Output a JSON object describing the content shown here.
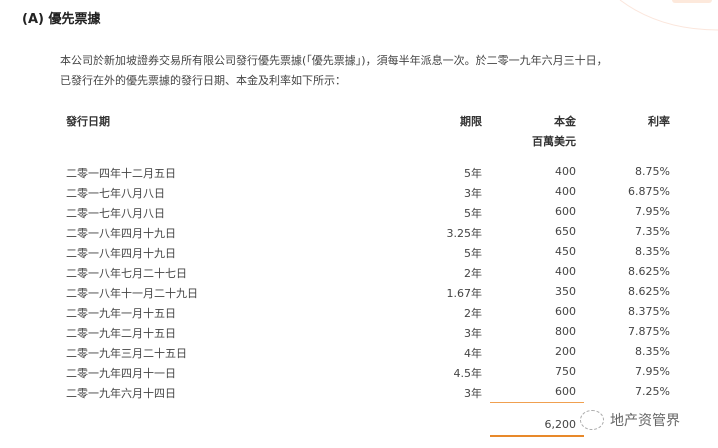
{
  "title": "(A)  優先票據",
  "paragraph": [
    "本公司於新加坡證券交易所有限公司發行優先票據(「優先票據」)，須每半年派息一次。於二零一九年六月三十日，",
    "已發行在外的優先票據的發行日期、本金及利率如下所示："
  ],
  "headers": {
    "date": "發行日期",
    "term": "期限",
    "amount": "本金",
    "amount_unit": "百萬美元",
    "rate": "利率"
  },
  "rows": [
    {
      "date": "二零一四年十二月五日",
      "term": "5年",
      "amount": "400",
      "rate": "8.75%"
    },
    {
      "date": "二零一七年八月八日",
      "term": "3年",
      "amount": "400",
      "rate": "6.875%"
    },
    {
      "date": "二零一七年八月八日",
      "term": "5年",
      "amount": "600",
      "rate": "7.95%"
    },
    {
      "date": "二零一八年四月十九日",
      "term": "3.25年",
      "amount": "650",
      "rate": "7.35%"
    },
    {
      "date": "二零一八年四月十九日",
      "term": "5年",
      "amount": "450",
      "rate": "8.35%"
    },
    {
      "date": "二零一八年七月二十七日",
      "term": "2年",
      "amount": "400",
      "rate": "8.625%"
    },
    {
      "date": "二零一八年十一月二十九日",
      "term": "1.67年",
      "amount": "350",
      "rate": "8.625%"
    },
    {
      "date": "二零一九年一月十五日",
      "term": "2年",
      "amount": "600",
      "rate": "8.375%"
    },
    {
      "date": "二零一九年二月十五日",
      "term": "3年",
      "amount": "800",
      "rate": "7.875%"
    },
    {
      "date": "二零一九年三月二十五日",
      "term": "4年",
      "amount": "200",
      "rate": "8.35%"
    },
    {
      "date": "二零一九年四月十一日",
      "term": "4.5年",
      "amount": "750",
      "rate": "7.95%"
    },
    {
      "date": "二零一九年六月十四日",
      "term": "3年",
      "amount": "600",
      "rate": "7.25%"
    }
  ],
  "total": "6,200",
  "watermark": "地产资管界",
  "accent": "#e8892a"
}
